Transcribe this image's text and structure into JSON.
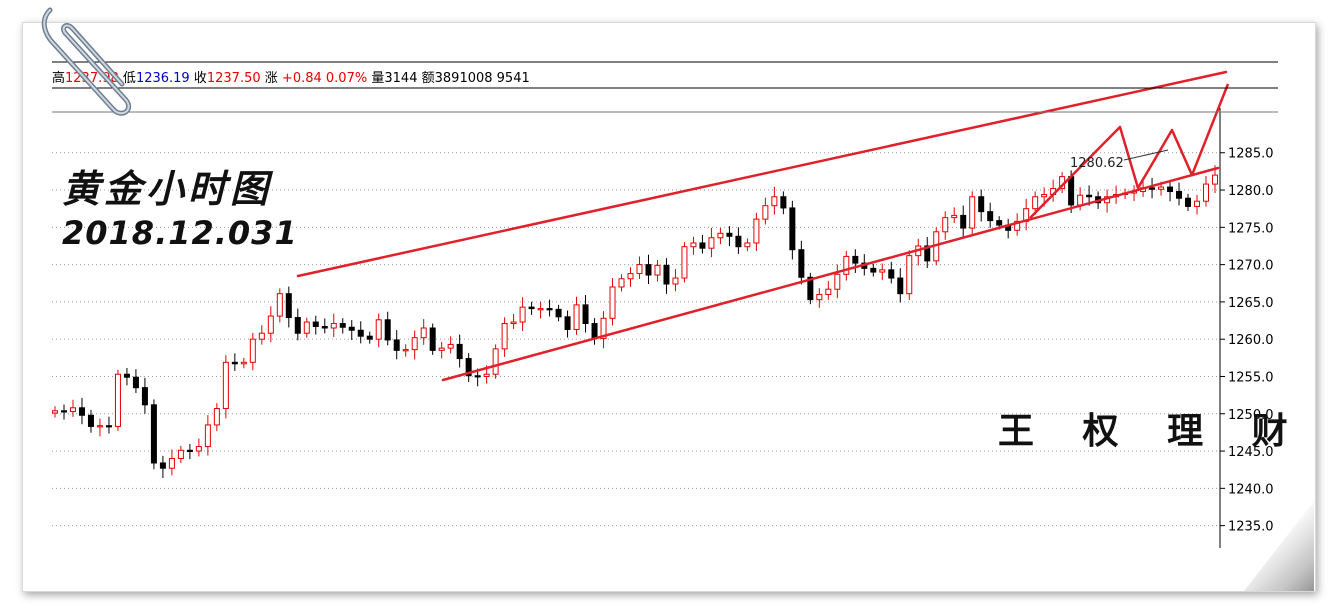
{
  "info_bar": {
    "high_label": "高",
    "high_value": "1237.98",
    "low_label": "低",
    "low_value": "1236.19",
    "close_label": "收",
    "close_value": "1237.50",
    "change_label": "涨",
    "change_value": "+0.84",
    "change_pct": "0.07%",
    "volume_label": "量",
    "volume_value": "3144",
    "amount_label": "额",
    "amount_value": "3891008 9541"
  },
  "overlay": {
    "title": "黄金小时图",
    "date": "2018.12.031",
    "signature": "王 权 理 财",
    "price_tag": "1280.62"
  },
  "colors": {
    "up": "#e60000",
    "down": "#000000",
    "trendline": "#e0202a",
    "grid": "#9a9a9a",
    "paper_border": "#d9d9d9"
  },
  "chart_data": {
    "type": "candlestick",
    "title": "",
    "xlabel": "",
    "ylabel": "",
    "ylim": [
      1232,
      1291
    ],
    "y_ticks": [
      1235.0,
      1240.0,
      1245.0,
      1250.0,
      1255.0,
      1260.0,
      1265.0,
      1270.0,
      1275.0,
      1280.0,
      1285.0
    ],
    "y_tick_labels": [
      "1235.0",
      "1240.0",
      "1245.0",
      "1250.0",
      "1255.0",
      "1260.0",
      "1265.0",
      "1270.0",
      "1275.0",
      "1280.0",
      "1285.0"
    ],
    "grid": true,
    "closes": [
      1250.4,
      1250.3,
      1250.8,
      1249.8,
      1248.3,
      1248.4,
      1248.3,
      1255.3,
      1254.9,
      1253.5,
      1251.2,
      1243.4,
      1242.7,
      1244.0,
      1245.1,
      1245.0,
      1245.6,
      1248.5,
      1250.7,
      1256.9,
      1256.7,
      1256.9,
      1260.0,
      1260.8,
      1263.1,
      1266.1,
      1262.9,
      1260.8,
      1262.3,
      1261.7,
      1261.5,
      1262.1,
      1261.6,
      1261.2,
      1260.4,
      1260.0,
      1262.6,
      1259.9,
      1258.5,
      1258.6,
      1260.2,
      1261.5,
      1258.5,
      1258.8,
      1259.3,
      1257.4,
      1255.1,
      1255.0,
      1255.3,
      1258.7,
      1262.1,
      1262.3,
      1264.3,
      1264.1,
      1264.1,
      1264.0,
      1263.0,
      1261.3,
      1264.6,
      1262.1,
      1260.1,
      1262.8,
      1267.0,
      1268.1,
      1268.8,
      1270.0,
      1268.6,
      1269.9,
      1267.4,
      1268.2,
      1272.4,
      1272.9,
      1272.2,
      1273.6,
      1274.2,
      1273.8,
      1272.4,
      1272.9,
      1276.1,
      1277.9,
      1279.1,
      1277.6,
      1272.0,
      1268.3,
      1265.3,
      1266.0,
      1266.7,
      1268.7,
      1271.1,
      1270.2,
      1269.5,
      1269.0,
      1269.3,
      1268.2,
      1266.1,
      1271.2,
      1272.5,
      1270.5,
      1274.4,
      1276.3,
      1276.6,
      1274.9,
      1279.1,
      1277.1,
      1275.9,
      1275.3,
      1274.6,
      1275.8,
      1277.5,
      1279.1,
      1279.4,
      1280.2,
      1281.8,
      1278.0,
      1279.3,
      1279.1,
      1278.3,
      1279.1,
      1279.4,
      1279.6,
      1279.8,
      1280.3,
      1280.1,
      1280.4,
      1279.8,
      1278.9,
      1277.8,
      1278.5,
      1280.8,
      1282.0
    ]
  }
}
